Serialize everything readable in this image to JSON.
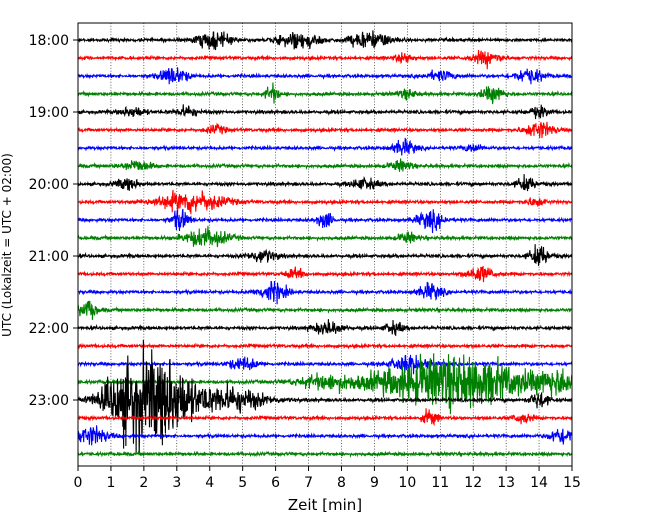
{
  "chart_data": {
    "type": "line",
    "title": "",
    "xlabel": "Zeit  [min]",
    "ylabel": "UTC (Lokalzeit = UTC + 02:00)",
    "xlim": [
      0,
      15
    ],
    "x_ticks": [
      "0",
      "1",
      "2",
      "3",
      "4",
      "5",
      "6",
      "7",
      "8",
      "9",
      "10",
      "11",
      "12",
      "13",
      "14",
      "15"
    ],
    "y_tick_labels": [
      "18:00",
      "19:00",
      "20:00",
      "21:00",
      "22:00",
      "23:00"
    ],
    "grid_x": true,
    "trace_colors": [
      "#000000",
      "#ff0000",
      "#0000ff",
      "#008000"
    ],
    "traces": [
      {
        "start": "18:00",
        "color": "#000000",
        "events": [
          [
            4.1,
            1.6,
            0.35
          ],
          [
            6.7,
            1.5,
            0.45
          ],
          [
            8.6,
            1.2,
            0.3
          ],
          [
            9.2,
            1.0,
            0.3
          ]
        ]
      },
      {
        "start": "18:15",
        "color": "#ff0000",
        "events": [
          [
            12.4,
            1.3,
            0.3
          ],
          [
            9.9,
            0.8,
            0.2
          ]
        ]
      },
      {
        "start": "18:30",
        "color": "#0000ff",
        "events": [
          [
            2.9,
            1.6,
            0.3
          ],
          [
            13.7,
            1.4,
            0.3
          ],
          [
            11.0,
            0.9,
            0.3
          ]
        ]
      },
      {
        "start": "18:45",
        "color": "#008000",
        "events": [
          [
            5.9,
            1.6,
            0.15
          ],
          [
            12.6,
            1.4,
            0.25
          ],
          [
            10.0,
            0.8,
            0.2
          ]
        ]
      },
      {
        "start": "19:00",
        "color": "#000000",
        "events": [
          [
            1.7,
            1.0,
            0.25
          ],
          [
            3.3,
            1.0,
            0.25
          ],
          [
            14.0,
            1.0,
            0.2
          ]
        ]
      },
      {
        "start": "19:15",
        "color": "#ff0000",
        "events": [
          [
            14.0,
            1.6,
            0.3
          ],
          [
            4.2,
            0.8,
            0.2
          ]
        ]
      },
      {
        "start": "19:30",
        "color": "#0000ff",
        "events": [
          [
            9.9,
            1.4,
            0.25
          ],
          [
            12.0,
            0.8,
            0.2
          ]
        ]
      },
      {
        "start": "19:45",
        "color": "#008000",
        "events": [
          [
            1.8,
            1.1,
            0.3
          ],
          [
            9.8,
            1.0,
            0.25
          ]
        ]
      },
      {
        "start": "20:00",
        "color": "#000000",
        "events": [
          [
            1.5,
            1.0,
            0.25
          ],
          [
            13.6,
            1.4,
            0.2
          ],
          [
            8.7,
            1.0,
            0.3
          ]
        ]
      },
      {
        "start": "20:15",
        "color": "#ff0000",
        "events": [
          [
            3.4,
            2.0,
            0.7
          ],
          [
            13.9,
            0.8,
            0.2
          ]
        ]
      },
      {
        "start": "20:30",
        "color": "#0000ff",
        "events": [
          [
            3.1,
            2.0,
            0.18
          ],
          [
            7.5,
            1.6,
            0.15
          ],
          [
            10.7,
            1.6,
            0.3
          ]
        ]
      },
      {
        "start": "20:45",
        "color": "#008000",
        "events": [
          [
            3.9,
            1.8,
            0.45
          ],
          [
            10.0,
            1.0,
            0.2
          ]
        ]
      },
      {
        "start": "21:00",
        "color": "#000000",
        "events": [
          [
            14.0,
            2.0,
            0.2
          ],
          [
            5.6,
            1.2,
            0.3
          ]
        ]
      },
      {
        "start": "21:15",
        "color": "#ff0000",
        "events": [
          [
            12.2,
            1.4,
            0.3
          ],
          [
            6.6,
            0.9,
            0.2
          ]
        ]
      },
      {
        "start": "21:30",
        "color": "#0000ff",
        "events": [
          [
            5.9,
            1.8,
            0.3
          ],
          [
            10.7,
            1.5,
            0.25
          ]
        ]
      },
      {
        "start": "21:45",
        "color": "#008000",
        "events": [
          [
            0.3,
            1.6,
            0.2
          ]
        ]
      },
      {
        "start": "22:00",
        "color": "#000000",
        "events": [
          [
            7.6,
            1.3,
            0.3
          ],
          [
            9.6,
            1.1,
            0.2
          ]
        ]
      },
      {
        "start": "22:15",
        "color": "#ff0000",
        "events": []
      },
      {
        "start": "22:30",
        "color": "#0000ff",
        "events": [
          [
            10.1,
            1.6,
            0.4
          ],
          [
            5.0,
            1.2,
            0.3
          ]
        ]
      },
      {
        "start": "22:45",
        "color": "#008000",
        "events": [
          [
            11.4,
            5.0,
            1.6
          ],
          [
            7.5,
            1.2,
            0.6
          ],
          [
            14.6,
            2.0,
            0.4
          ]
        ]
      },
      {
        "start": "23:00",
        "color": "#000000",
        "events": [
          [
            1.8,
            8.0,
            0.65
          ],
          [
            2.9,
            5.0,
            0.45
          ],
          [
            4.5,
            2.5,
            0.8
          ],
          [
            14.0,
            1.5,
            0.2
          ]
        ]
      },
      {
        "start": "23:15",
        "color": "#ff0000",
        "events": [
          [
            10.7,
            1.6,
            0.15
          ],
          [
            13.5,
            1.0,
            0.2
          ]
        ]
      },
      {
        "start": "23:30",
        "color": "#0000ff",
        "events": [
          [
            0.4,
            1.8,
            0.35
          ],
          [
            14.7,
            1.6,
            0.25
          ]
        ]
      },
      {
        "start": "23:45",
        "color": "#008000",
        "events": []
      }
    ]
  }
}
